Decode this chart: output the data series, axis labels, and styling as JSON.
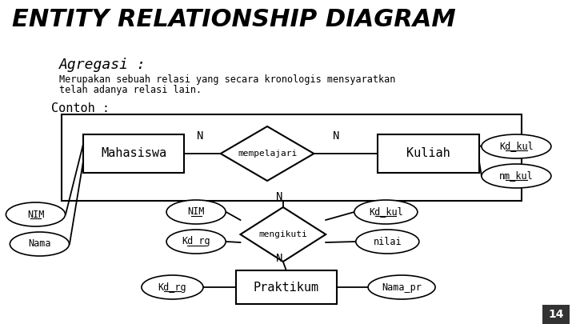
{
  "title": "ENTITY RELATIONSHIP DIAGRAM",
  "background_color": "#ffffff",
  "subtitle1": "Agregasi :",
  "subtitle2": "Merupakan sebuah relasi yang secara kronologis mensyaratkan",
  "subtitle3": "telah adanya relasi lain.",
  "contoh": "Contoh :",
  "page_num": "14"
}
